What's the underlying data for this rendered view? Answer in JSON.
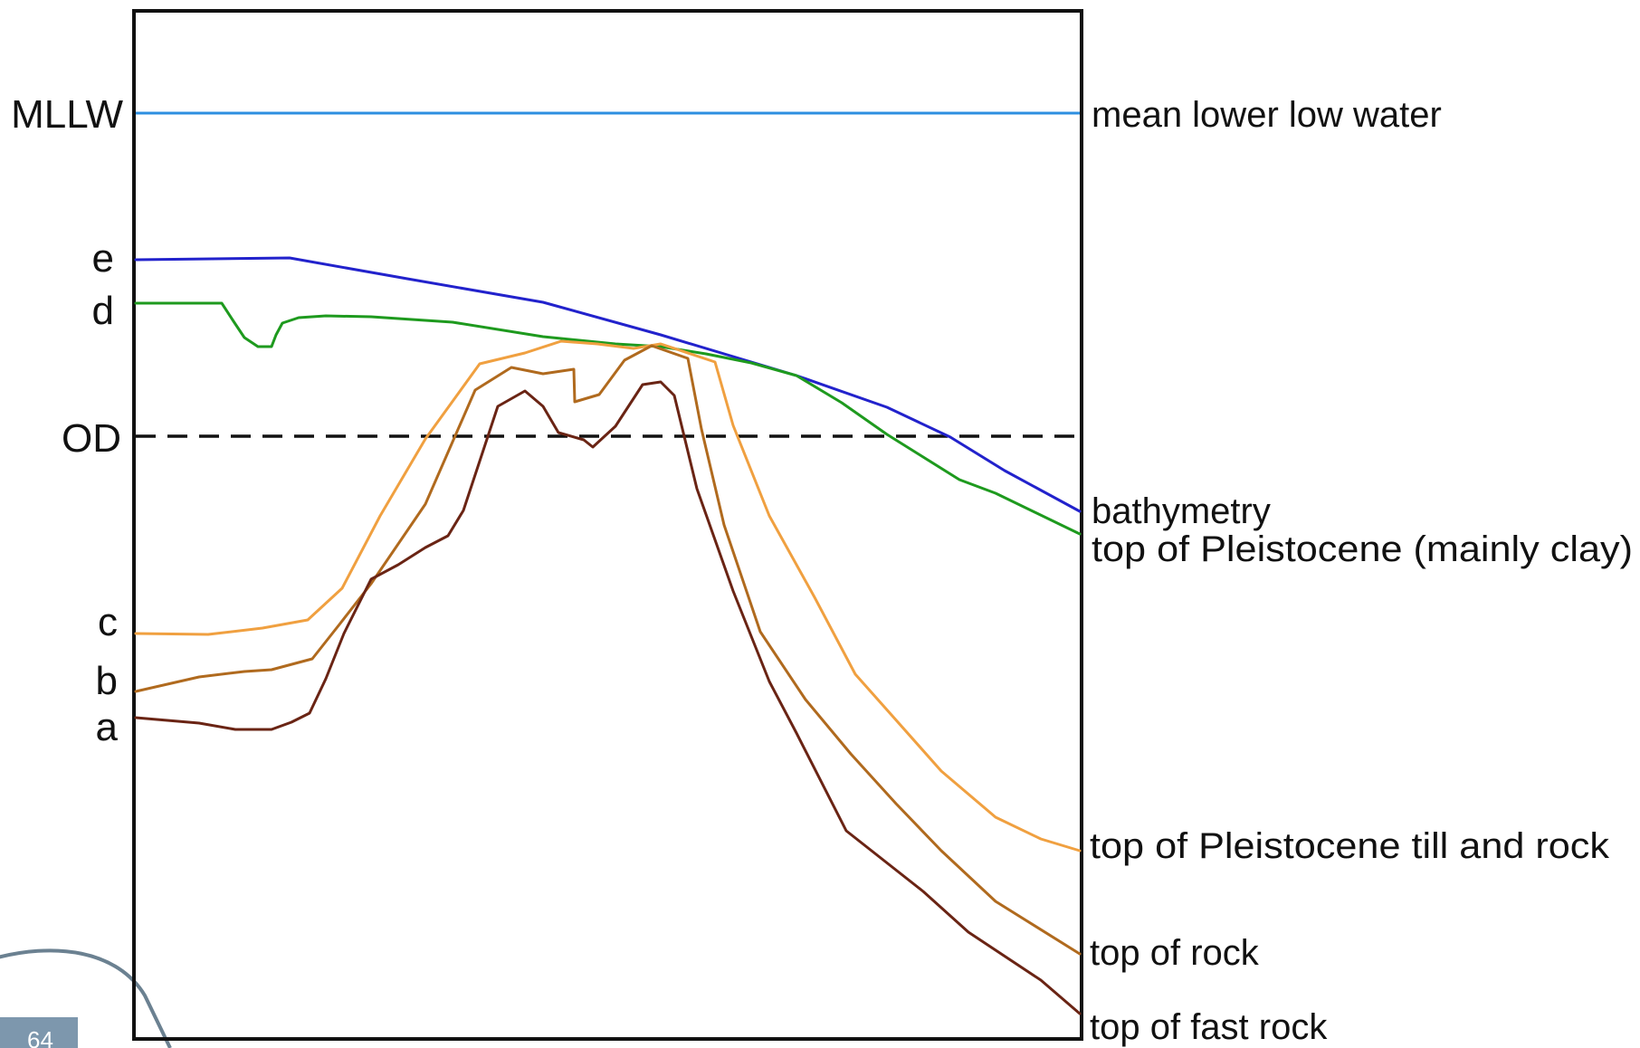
{
  "colors": {
    "frame": "#111111",
    "mllw": "#2e8fe0",
    "od": "#111111",
    "bathymetry": "#2222cc",
    "pleistocene_clay": "#1e9a1e",
    "pleistocene_till": "#f0a040",
    "rock": "#b06a1e",
    "fast_rock": "#6a2414",
    "page_tab": "#7d97ad",
    "swoosh": "#6b8191"
  },
  "left_labels": {
    "mllw": "MLLW",
    "e": "e",
    "d": "d",
    "od": "OD",
    "c": "c",
    "b": "b",
    "a": "a"
  },
  "right_labels": {
    "mllw": "mean lower low water",
    "bathymetry": "bathymetry",
    "pleistocene_clay": "top of Pleistocene (mainly clay)",
    "pleistocene_till": "top of Pleistocene till and rock",
    "rock": "top of rock",
    "fast_rock": "top of fast rock"
  },
  "page_tab": {
    "text": "64",
    "icon": "page-corner-swoosh"
  }
}
